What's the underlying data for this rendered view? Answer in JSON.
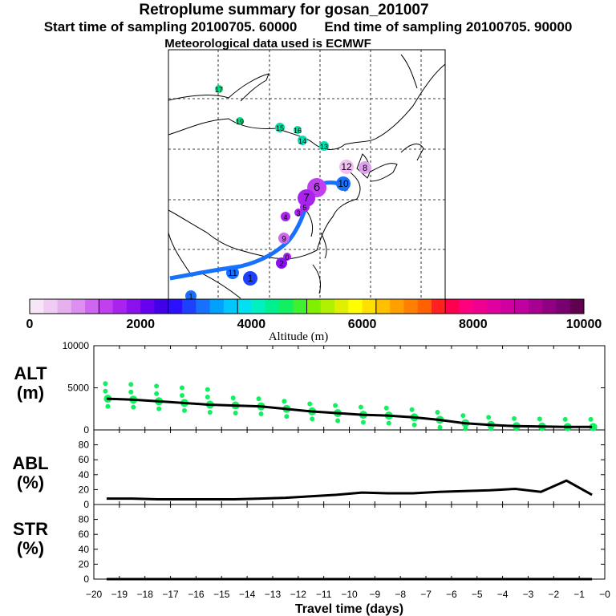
{
  "header": {
    "title": "Retroplume summary for gosan_201007",
    "start_label": "Start time of sampling 20100705. 60000",
    "end_label": "End time of sampling 20100705. 90000",
    "met_label": "Meteorological data used is ECMWF"
  },
  "colorbar": {
    "ticks": [
      "0",
      "2000",
      "4000",
      "6000",
      "8000",
      "10000"
    ],
    "label": "Altitude (m)",
    "colors": [
      "#f7e6f7",
      "#f0ccf2",
      "#e6b0ef",
      "#dc8ff0",
      "#cf66f0",
      "#c040f0",
      "#aa22ee",
      "#8a10ee",
      "#6600ee",
      "#4000e8",
      "#2a10ff",
      "#1e40ff",
      "#1870ff",
      "#00a0ff",
      "#00c8ff",
      "#00e0f0",
      "#00f0c0",
      "#00f090",
      "#10f060",
      "#40f030",
      "#80f000",
      "#b0f000",
      "#e0f000",
      "#ffff00",
      "#ffe000",
      "#ffc000",
      "#ffa000",
      "#ff8000",
      "#ff6000",
      "#ff2020",
      "#ff0050",
      "#ff0080",
      "#f00090",
      "#e000a0",
      "#d000a0",
      "#c000a0",
      "#a80090",
      "#900080",
      "#780070",
      "#600050"
    ]
  },
  "map": {
    "markers": [
      {
        "label": "17",
        "color": "#00e080"
      },
      {
        "label": "19",
        "color": "#00e080"
      },
      {
        "label": "15",
        "color": "#00e0a0"
      },
      {
        "label": "16",
        "color": "#00e0a0"
      },
      {
        "label": "14",
        "color": "#00e0b0"
      },
      {
        "label": "13",
        "color": "#00e0b0"
      },
      {
        "label": "12",
        "color": "#f0c0f0"
      },
      {
        "label": "8",
        "color": "#e0a0f0"
      },
      {
        "label": "10",
        "color": "#1870ff"
      },
      {
        "label": "6",
        "color": "#c040f0"
      },
      {
        "label": "7",
        "color": "#aa22ee"
      },
      {
        "label": "5",
        "color": "#aa22ee"
      },
      {
        "label": "4",
        "color": "#aa22ee"
      },
      {
        "label": "3",
        "color": "#aa22ee"
      },
      {
        "label": "9",
        "color": "#cf66f0"
      },
      {
        "label": "0",
        "color": "#aa22ee"
      },
      {
        "label": "2",
        "color": "#8a10ee"
      },
      {
        "label": "1",
        "color": "#1e40ff"
      },
      {
        "label": "11",
        "color": "#1870ff"
      },
      {
        "label": "1",
        "color": "#1870ff"
      }
    ]
  },
  "chart_data": [
    {
      "type": "line",
      "title": "ALT (m)",
      "xlabel": "Travel time (days)",
      "ylabel": "ALT (m)",
      "ylim": [
        0,
        10000
      ],
      "yticks": [
        "10000",
        "5000",
        "0"
      ],
      "x": [
        -19.5,
        -18.5,
        -17.5,
        -16.5,
        -15.5,
        -14.5,
        -13.5,
        -12.5,
        -11.5,
        -10.5,
        -9.5,
        -8.5,
        -7.5,
        -6.5,
        -5.5,
        -4.5,
        -3.5,
        -2.5,
        -1.5,
        -0.5
      ],
      "values": [
        3700,
        3600,
        3400,
        3200,
        3000,
        2900,
        2800,
        2500,
        2200,
        2000,
        1800,
        1700,
        1500,
        1200,
        800,
        600,
        450,
        400,
        350,
        350
      ],
      "scatter_color": "#10f060"
    },
    {
      "type": "line",
      "title": "ABL (%)",
      "ylabel": "ABL (%)",
      "ylim": [
        0,
        100
      ],
      "yticks": [
        "80",
        "60",
        "40",
        "20",
        "0"
      ],
      "x": [
        -19.5,
        -18.5,
        -17.5,
        -16.5,
        -15.5,
        -14.5,
        -13.5,
        -12.5,
        -11.5,
        -10.5,
        -9.5,
        -8.5,
        -7.5,
        -6.5,
        -5.5,
        -4.5,
        -3.5,
        -2.5,
        -1.5,
        -0.5
      ],
      "values": [
        8,
        8,
        7,
        7,
        7,
        7,
        8,
        9,
        11,
        13,
        16,
        15,
        15,
        17,
        18,
        19,
        21,
        17,
        32,
        13
      ]
    },
    {
      "type": "line",
      "title": "STR (%)",
      "ylabel": "STR (%)",
      "ylim": [
        0,
        100
      ],
      "yticks": [
        "80",
        "60",
        "40",
        "20",
        "0"
      ],
      "x": [
        -19.5,
        -18.5,
        -17.5,
        -16.5,
        -15.5,
        -14.5,
        -13.5,
        -12.5,
        -11.5,
        -10.5,
        -9.5,
        -8.5,
        -7.5,
        -6.5,
        -5.5,
        -4.5,
        -3.5,
        -2.5,
        -1.5,
        -0.5
      ],
      "values": [
        0,
        0,
        0,
        0,
        0,
        0,
        0,
        0,
        0,
        0,
        0,
        0,
        0,
        0,
        0,
        0,
        0,
        0,
        0,
        0
      ]
    }
  ],
  "xaxis": {
    "ticks": [
      "−20",
      "−19",
      "−18",
      "−17",
      "−16",
      "−15",
      "−14",
      "−13",
      "−12",
      "−11",
      "−10",
      "−9",
      "−8",
      "−7",
      "−6",
      "−5",
      "−4",
      "−3",
      "−2",
      "−1",
      "−0"
    ],
    "label": "Travel time (days)"
  },
  "labels": {
    "alt": [
      "ALT",
      "(m)"
    ],
    "abl": [
      "ABL",
      "(%)"
    ],
    "str": [
      "STR",
      "(%)"
    ]
  }
}
